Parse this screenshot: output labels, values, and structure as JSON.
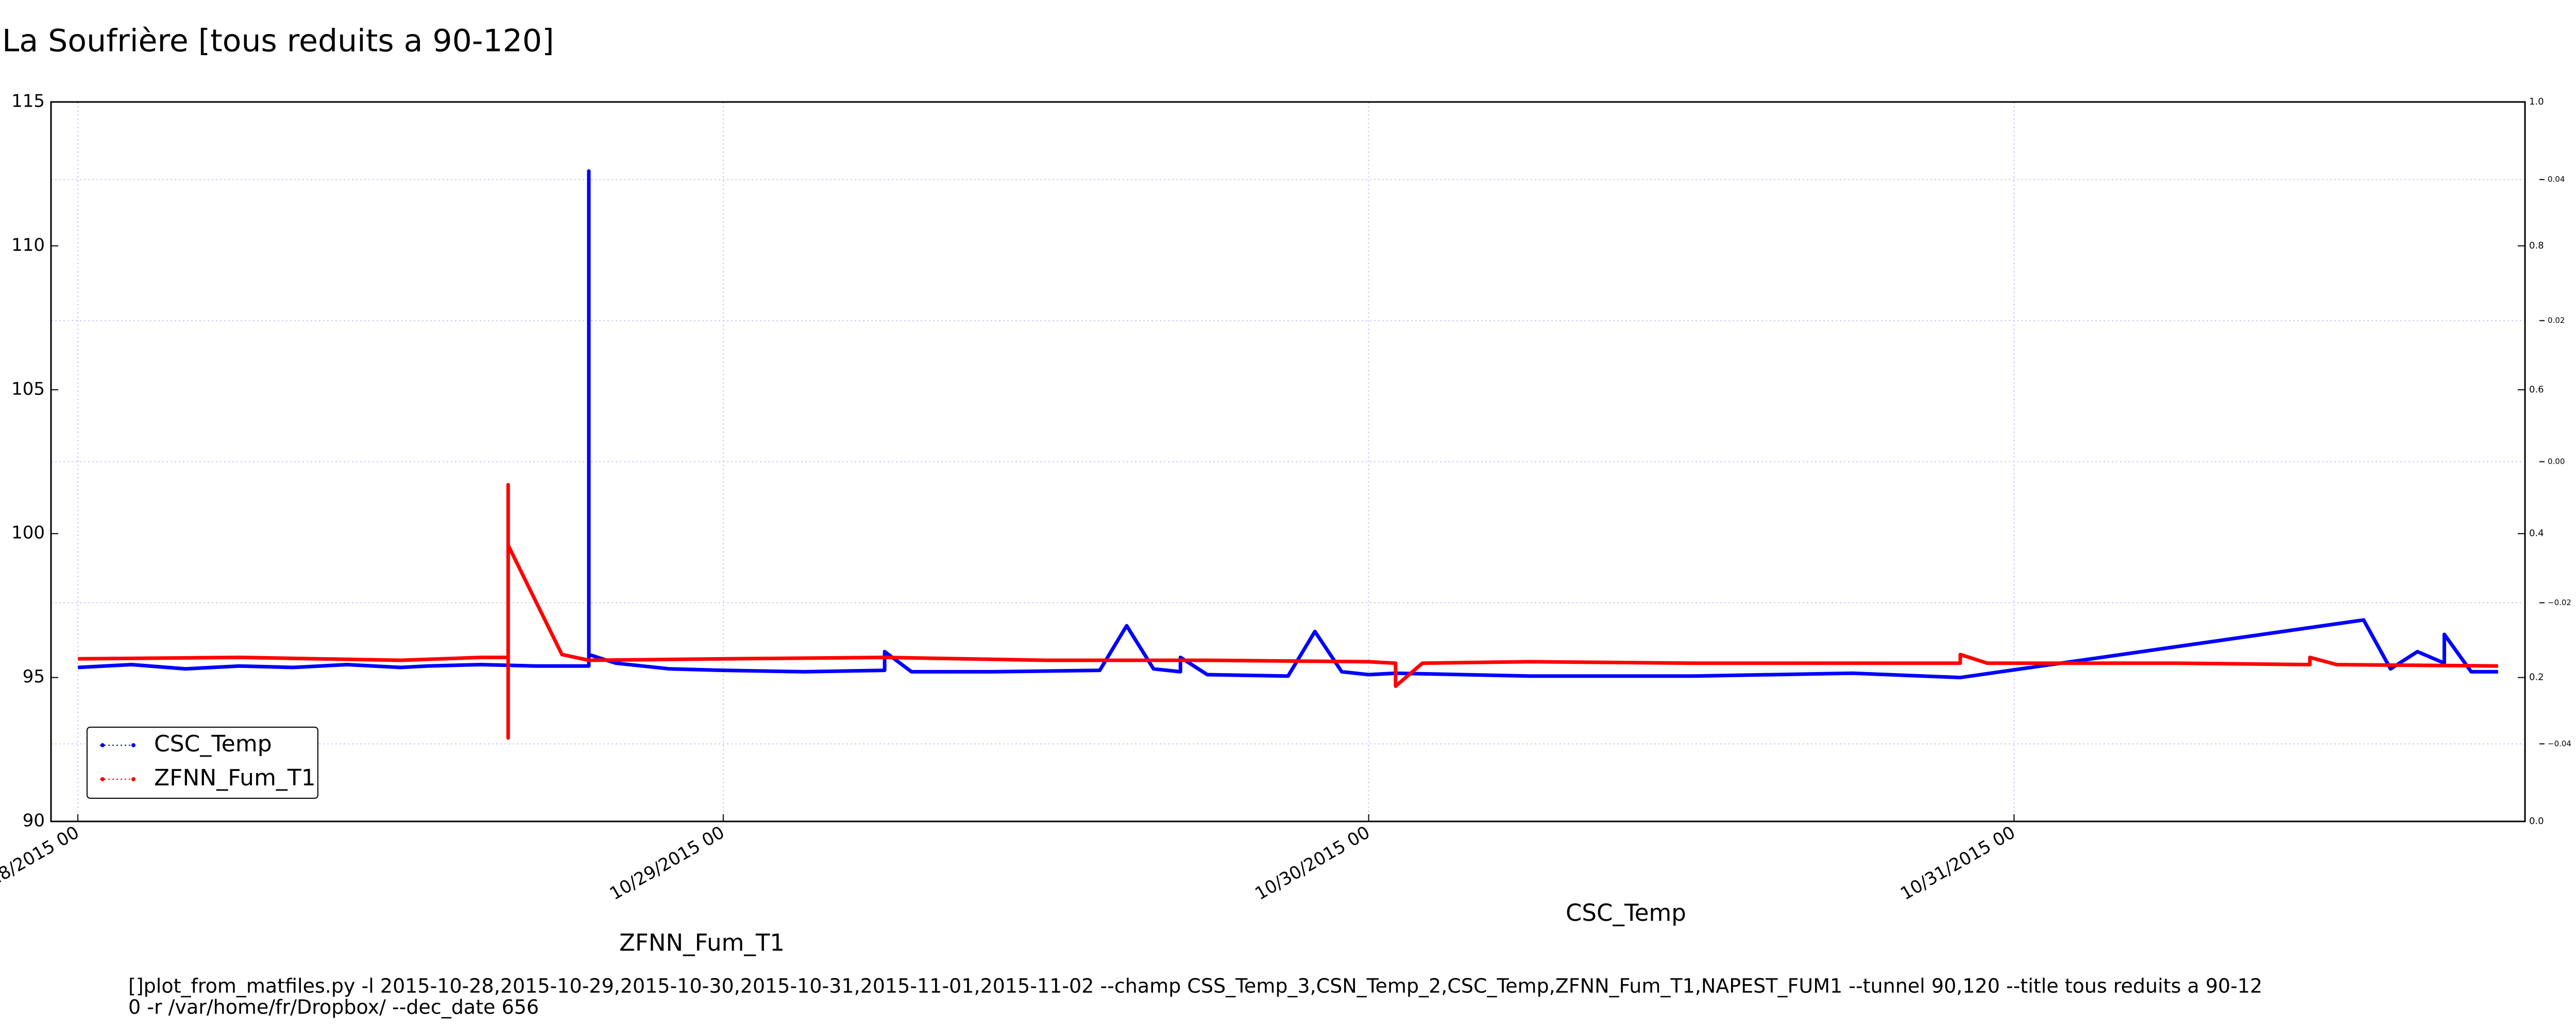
{
  "chart_data": {
    "type": "line",
    "title": "La Soufrière [tous reduits a 90-120]",
    "xlim": [
      "2015-10-27 23",
      "2015-10-31 19"
    ],
    "xticks": [
      {
        "value": "2015-10-28 00",
        "label": "10/28/2015 00"
      },
      {
        "value": "2015-10-29 00",
        "label": "10/29/2015 00"
      },
      {
        "value": "2015-10-30 00",
        "label": "10/30/2015 00"
      },
      {
        "value": "2015-10-31 00",
        "label": "10/31/2015 00"
      }
    ],
    "ylim": [
      90,
      115
    ],
    "yticks": [
      90,
      95,
      100,
      105,
      110,
      115
    ],
    "y2lim": [
      0,
      1
    ],
    "y2ticks": [
      {
        "value": 0,
        "label": "0.0"
      },
      0.2,
      0.4,
      0.6,
      0.8,
      {
        "value": 1,
        "label": "1.0"
      }
    ],
    "y3lim": [
      -0.051,
      0.051
    ],
    "y3ticks": [
      {
        "value": -0.04,
        "label": "−0.04"
      },
      {
        "value": -0.02,
        "label": "−0.02"
      },
      {
        "value": 0,
        "label": "0.00"
      },
      0.02,
      0.04
    ],
    "grid": true,
    "legend": "lower left",
    "series": [
      {
        "name": "CSC_Temp",
        "color": "#0000ff",
        "x": [
          "2015-10-28 00",
          "2015-10-28 02",
          "2015-10-28 04",
          "2015-10-28 06",
          "2015-10-28 08",
          "2015-10-28 10",
          "2015-10-28 12",
          "2015-10-28 13",
          "2015-10-28 15",
          "2015-10-28 17",
          "2015-10-28 19",
          "2015-10-28 19",
          "2015-10-28 19",
          "2015-10-28 20",
          "2015-10-28 22",
          "2015-10-29 00",
          "2015-10-29 03",
          "2015-10-29 06",
          "2015-10-29 06",
          "2015-10-29 07",
          "2015-10-29 10",
          "2015-10-29 14",
          "2015-10-29 15",
          "2015-10-29 16",
          "2015-10-29 17",
          "2015-10-29 17",
          "2015-10-29 18",
          "2015-10-29 21",
          "2015-10-29 22",
          "2015-10-29 23",
          "2015-10-30 00",
          "2015-10-30 01",
          "2015-10-30 06",
          "2015-10-30 12",
          "2015-10-30 18",
          "2015-10-30 22",
          "2015-10-31 13",
          "2015-10-31 14",
          "2015-10-31 15",
          "2015-10-31 16",
          "2015-10-31 16",
          "2015-10-31 17",
          "2015-10-31 18"
        ],
        "values": [
          95.35,
          95.45,
          95.3,
          95.4,
          95.35,
          95.45,
          95.35,
          95.4,
          95.45,
          95.4,
          95.4,
          112.6,
          95.8,
          95.5,
          95.3,
          95.25,
          95.2,
          95.25,
          95.9,
          95.2,
          95.2,
          95.25,
          96.8,
          95.3,
          95.2,
          95.7,
          95.1,
          95.05,
          96.6,
          95.2,
          95.1,
          95.15,
          95.05,
          95.05,
          95.15,
          95.0,
          97.0,
          95.3,
          95.9,
          95.5,
          96.5,
          95.2,
          95.2
        ]
      },
      {
        "name": "ZFNN_Fum_T1",
        "color": "#ff0000",
        "x": [
          "2015-10-28 00",
          "2015-10-28 06",
          "2015-10-28 12",
          "2015-10-28 15",
          "2015-10-28 16",
          "2015-10-28 16",
          "2015-10-28 16",
          "2015-10-28 16",
          "2015-10-28 18",
          "2015-10-28 19",
          "2015-10-29 00",
          "2015-10-29 06",
          "2015-10-29 12",
          "2015-10-29 18",
          "2015-10-30 00",
          "2015-10-30 01",
          "2015-10-30 01",
          "2015-10-30 02",
          "2015-10-30 06",
          "2015-10-30 12",
          "2015-10-30 18",
          "2015-10-30 22",
          "2015-10-30 22",
          "2015-10-30 23",
          "2015-10-31 06",
          "2015-10-31 11",
          "2015-10-31 11",
          "2015-10-31 12",
          "2015-10-31 18"
        ],
        "values": [
          95.65,
          95.7,
          95.6,
          95.7,
          95.7,
          101.7,
          92.9,
          99.6,
          95.8,
          95.6,
          95.65,
          95.7,
          95.6,
          95.6,
          95.55,
          95.5,
          94.7,
          95.5,
          95.55,
          95.5,
          95.5,
          95.5,
          95.8,
          95.5,
          95.5,
          95.45,
          95.7,
          95.45,
          95.4
        ]
      }
    ],
    "annotations": [
      {
        "text": "ZFNN_Fum_T1",
        "color": "#ff0000"
      },
      {
        "text": "CSC_Temp",
        "color": "#0000ff"
      }
    ],
    "command_lines": [
      "[]plot_from_matfiles.py -l 2015-10-28,2015-10-29,2015-10-30,2015-10-31,2015-11-01,2015-11-02 --champ CSS_Temp_3,CSN_Temp_2,CSC_Temp,ZFNN_Fum_T1,NAPEST_FUM1 --tunnel 90,120 --title tous reduits a 90-12",
      "0 -r /var/home/fr/Dropbox/ --dec_date 656"
    ]
  }
}
